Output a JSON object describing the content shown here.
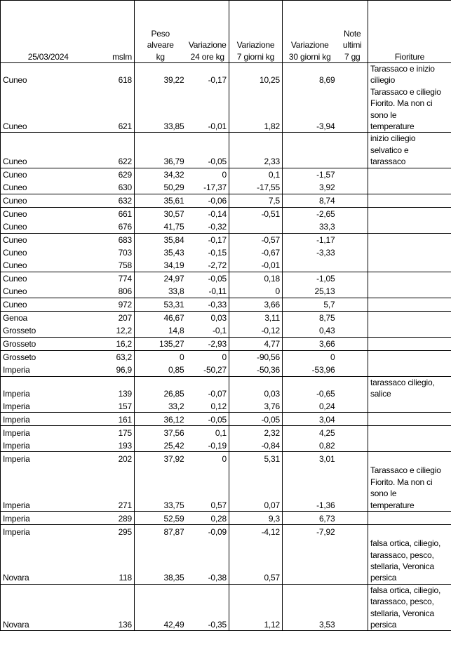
{
  "header": {
    "date": "25/03/2024",
    "mslm": "mslm",
    "peso": "Peso\nalveare\nkg",
    "var24": "Variazione\n24 ore kg",
    "var7": "Variazione\n7 giorni kg",
    "var30": "Variazione\n30 giorni kg",
    "note": "Note\nultimi\n7 gg",
    "fioriture": "Fioriture"
  },
  "groups": [
    [
      {
        "name": "Cuneo",
        "mslm": "618",
        "peso": "39,22",
        "v24": "-0,17",
        "v7": "10,25",
        "v30": "8,69",
        "note": "",
        "fio": "Tarassaco e inizio\nciliegio"
      },
      {
        "name": "Cuneo",
        "mslm": "621",
        "peso": "33,85",
        "v24": "-0,01",
        "v7": "1,82",
        "v30": "-3,94",
        "note": "",
        "fio": "Tarassaco e ciliegio\nFiorito.  Ma non ci\nsono le\ntemperature"
      }
    ],
    [
      {
        "name": "Cuneo",
        "mslm": "622",
        "peso": "36,79",
        "v24": "-0,05",
        "v7": "2,33",
        "v30": "",
        "note": "",
        "fio": "inizio ciliegio\nselvatico e\ntarassaco"
      }
    ],
    [
      {
        "name": "Cuneo",
        "mslm": "629",
        "peso": "34,32",
        "v24": "0",
        "v7": "0,1",
        "v30": "-1,57",
        "note": "",
        "fio": ""
      },
      {
        "name": "Cuneo",
        "mslm": "630",
        "peso": "50,29",
        "v24": "-17,37",
        "v7": "-17,55",
        "v30": "3,92",
        "note": "",
        "fio": ""
      }
    ],
    [
      {
        "name": "Cuneo",
        "mslm": "632",
        "peso": "35,61",
        "v24": "-0,06",
        "v7": "7,5",
        "v30": "8,74",
        "note": "",
        "fio": ""
      }
    ],
    [
      {
        "name": "Cuneo",
        "mslm": "661",
        "peso": "30,57",
        "v24": "-0,14",
        "v7": "-0,51",
        "v30": "-2,65",
        "note": "",
        "fio": ""
      },
      {
        "name": "Cuneo",
        "mslm": "676",
        "peso": "41,75",
        "v24": "-0,32",
        "v7": "",
        "v30": "33,3",
        "note": "",
        "fio": ""
      }
    ],
    [
      {
        "name": "Cuneo",
        "mslm": "683",
        "peso": "35,84",
        "v24": "-0,17",
        "v7": "-0,57",
        "v30": "-1,17",
        "note": "",
        "fio": ""
      },
      {
        "name": "Cuneo",
        "mslm": "703",
        "peso": "35,43",
        "v24": "-0,15",
        "v7": "-0,67",
        "v30": "-3,33",
        "note": "",
        "fio": ""
      },
      {
        "name": "Cuneo",
        "mslm": "758",
        "peso": "34,19",
        "v24": "-2,72",
        "v7": "-0,01",
        "v30": "",
        "note": "",
        "fio": ""
      }
    ],
    [
      {
        "name": "Cuneo",
        "mslm": "774",
        "peso": "24,97",
        "v24": "-0,05",
        "v7": "0,18",
        "v30": "-1,05",
        "note": "",
        "fio": ""
      },
      {
        "name": "Cuneo",
        "mslm": "806",
        "peso": "33,8",
        "v24": "-0,11",
        "v7": "0",
        "v30": "25,13",
        "note": "",
        "fio": ""
      }
    ],
    [
      {
        "name": "Cuneo",
        "mslm": "972",
        "peso": "53,31",
        "v24": "-0,33",
        "v7": "3,66",
        "v30": "5,7",
        "note": "",
        "fio": ""
      }
    ],
    [
      {
        "name": "Genoa",
        "mslm": "207",
        "peso": "46,67",
        "v24": "0,03",
        "v7": "3,11",
        "v30": "8,75",
        "note": "",
        "fio": ""
      },
      {
        "name": "Grosseto",
        "mslm": "12,2",
        "peso": "14,8",
        "v24": "-0,1",
        "v7": "-0,12",
        "v30": "0,43",
        "note": "",
        "fio": ""
      }
    ],
    [
      {
        "name": "Grosseto",
        "mslm": "16,2",
        "peso": "135,27",
        "v24": "-2,93",
        "v7": "4,77",
        "v30": "3,66",
        "note": "",
        "fio": ""
      }
    ],
    [
      {
        "name": "Grosseto",
        "mslm": "63,2",
        "peso": "0",
        "v24": "0",
        "v7": "-90,56",
        "v30": "0",
        "note": "",
        "fio": ""
      },
      {
        "name": "Imperia",
        "mslm": "96,9",
        "peso": "0,85",
        "v24": "-50,27",
        "v7": "-50,36",
        "v30": "-53,96",
        "note": "",
        "fio": ""
      }
    ],
    [
      {
        "name": "Imperia",
        "mslm": "139",
        "peso": "26,85",
        "v24": "-0,07",
        "v7": "0,03",
        "v30": "-0,65",
        "note": "",
        "fio": "tarassaco ciliegio,\nsalice"
      },
      {
        "name": "Imperia",
        "mslm": "157",
        "peso": "33,2",
        "v24": "0,12",
        "v7": "3,76",
        "v30": "0,24",
        "note": "",
        "fio": ""
      }
    ],
    [
      {
        "name": "Imperia",
        "mslm": "161",
        "peso": "36,12",
        "v24": "-0,05",
        "v7": "-0,05",
        "v30": "3,04",
        "note": "",
        "fio": ""
      }
    ],
    [
      {
        "name": "Imperia",
        "mslm": "175",
        "peso": "37,56",
        "v24": "0,1",
        "v7": "2,32",
        "v30": "4,25",
        "note": "",
        "fio": ""
      },
      {
        "name": "Imperia",
        "mslm": "193",
        "peso": "25,42",
        "v24": "-0,19",
        "v7": "-0,84",
        "v30": "0,82",
        "note": "",
        "fio": ""
      }
    ],
    [
      {
        "name": "Imperia",
        "mslm": "202",
        "peso": "37,92",
        "v24": "0",
        "v7": "5,31",
        "v30": "3,01",
        "note": "",
        "fio": ""
      },
      {
        "name": "Imperia",
        "mslm": "271",
        "peso": "33,75",
        "v24": "0,57",
        "v7": "0,07",
        "v30": "-1,36",
        "note": "",
        "fio": "Tarassaco e ciliegio\nFiorito.  Ma non ci\nsono le\ntemperature"
      }
    ],
    [
      {
        "name": "Imperia",
        "mslm": "289",
        "peso": "52,59",
        "v24": "0,28",
        "v7": "9,3",
        "v30": "6,73",
        "note": "",
        "fio": ""
      }
    ],
    [
      {
        "name": "Imperia",
        "mslm": "295",
        "peso": "87,87",
        "v24": "-0,09",
        "v7": "-4,12",
        "v30": "-7,92",
        "note": "",
        "fio": ""
      },
      {
        "name": "Novara",
        "mslm": "118",
        "peso": "38,35",
        "v24": "-0,38",
        "v7": "0,57",
        "v30": "",
        "note": "",
        "fio": "falsa ortica, ciliegio,\ntarassaco, pesco,\nstellaria, Veronica\npersica"
      }
    ],
    [
      {
        "name": "Novara",
        "mslm": "136",
        "peso": "42,49",
        "v24": "-0,35",
        "v7": "1,12",
        "v30": "3,53",
        "note": "",
        "fio": "falsa ortica, ciliegio,\ntarassaco, pesco,\nstellaria, Veronica\npersica"
      }
    ]
  ]
}
